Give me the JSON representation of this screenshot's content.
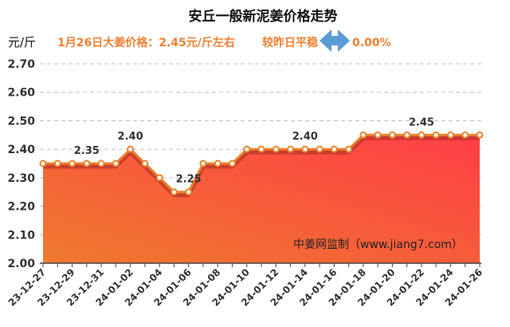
{
  "chart_data": {
    "type": "area",
    "title": "安丘一般新泥姜价格走势",
    "ylabel": "元/斤",
    "summary": "1月26日大姜价格：2.45元/斤左右",
    "change_text": "较昨日平稳",
    "change_icon": "left-right-arrow-icon",
    "change_value": "0.00%",
    "watermark": "中姜网监制（www.jiang7.com）",
    "ylim": [
      2.0,
      2.7
    ],
    "yticks": [
      "2.00",
      "2.10",
      "2.20",
      "2.30",
      "2.40",
      "2.50",
      "2.60",
      "2.70"
    ],
    "grid": true,
    "x": [
      "23-12-27",
      "23-12-28",
      "23-12-29",
      "23-12-30",
      "23-12-31",
      "24-01-01",
      "24-01-02",
      "24-01-03",
      "24-01-04",
      "24-01-05",
      "24-01-06",
      "24-01-07",
      "24-01-08",
      "24-01-09",
      "24-01-10",
      "24-01-11",
      "24-01-12",
      "24-01-13",
      "24-01-14",
      "24-01-15",
      "24-01-16",
      "24-01-17",
      "24-01-18",
      "24-01-19",
      "24-01-20",
      "24-01-21",
      "24-01-22",
      "24-01-23",
      "24-01-24",
      "24-01-25",
      "24-01-26"
    ],
    "xtick_labels": [
      "23-12-27",
      "23-12-29",
      "23-12-31",
      "24-01-02",
      "24-01-04",
      "24-01-06",
      "24-01-08",
      "24-01-10",
      "24-01-12",
      "24-01-14",
      "24-01-16",
      "24-01-18",
      "24-01-20",
      "24-01-22",
      "24-01-24",
      "24-01-26"
    ],
    "values": [
      2.35,
      2.35,
      2.35,
      2.35,
      2.35,
      2.35,
      2.4,
      2.35,
      2.3,
      2.25,
      2.25,
      2.35,
      2.35,
      2.35,
      2.4,
      2.4,
      2.4,
      2.4,
      2.4,
      2.4,
      2.4,
      2.4,
      2.45,
      2.45,
      2.45,
      2.45,
      2.45,
      2.45,
      2.45,
      2.45,
      2.45
    ],
    "data_labels": [
      {
        "index": 3,
        "text": "2.35"
      },
      {
        "index": 6,
        "text": "2.40"
      },
      {
        "index": 10,
        "text": "2.25"
      },
      {
        "index": 18,
        "text": "2.40"
      },
      {
        "index": 26,
        "text": "2.45"
      }
    ],
    "colors": {
      "line": "#e8822a",
      "fill_top": "#ff3e46",
      "fill_bottom": "#ef7a2e",
      "accent": "#ef8032",
      "arrow": "#5b9bd5"
    }
  }
}
